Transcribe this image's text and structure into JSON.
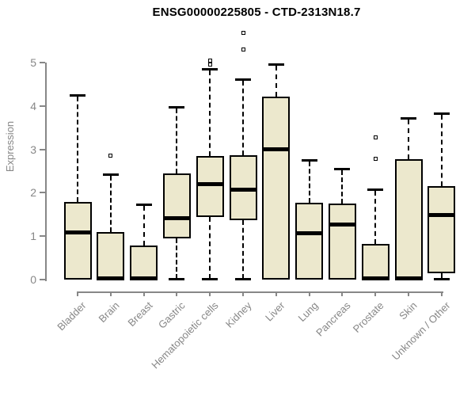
{
  "page": {
    "title": "ENSG00000225805 - CTD-2313N18.7"
  },
  "chart_data": {
    "type": "boxplot",
    "title": "ENSG00000225805 - CTD-2313N18.7",
    "xlabel": "",
    "ylabel": "Expression",
    "ylim": [
      0,
      5
    ],
    "yticks": [
      0,
      1,
      2,
      3,
      4,
      5
    ],
    "grid": false,
    "legend": "none",
    "colors": {
      "box_fill": "#ece8cd",
      "box_border": "#000000",
      "median": "#000000",
      "whisker": "#000000",
      "axis": "#878787",
      "tick_text": "#878787",
      "title_text": "#000000"
    },
    "categories": [
      "Bladder",
      "Brain",
      "Breast",
      "Gastric",
      "Hematopoietic cells",
      "Kidney",
      "Liver",
      "Lung",
      "Pancreas",
      "Prostate",
      "Skin",
      "Unknown / Other"
    ],
    "series": [
      {
        "name": "Bladder",
        "whisker_low": 0,
        "q1": 0,
        "median": 1.08,
        "q3": 1.79,
        "whisker_high": 4.25,
        "outliers": []
      },
      {
        "name": "Brain",
        "whisker_low": 0,
        "q1": 0,
        "median": 0.03,
        "q3": 1.09,
        "whisker_high": 2.43,
        "outliers": [
          2.85
        ]
      },
      {
        "name": "Breast",
        "whisker_low": 0,
        "q1": 0,
        "median": 0.03,
        "q3": 0.78,
        "whisker_high": 1.73,
        "outliers": []
      },
      {
        "name": "Gastric",
        "whisker_low": 0.02,
        "q1": 0.95,
        "median": 1.41,
        "q3": 2.44,
        "whisker_high": 3.98,
        "outliers": []
      },
      {
        "name": "Hematopoietic cells",
        "whisker_low": 0.02,
        "q1": 1.44,
        "median": 2.2,
        "q3": 2.84,
        "whisker_high": 4.85,
        "outliers": [
          4.95,
          5.04
        ]
      },
      {
        "name": "Kidney",
        "whisker_low": 0.02,
        "q1": 1.36,
        "median": 2.07,
        "q3": 2.87,
        "whisker_high": 4.62,
        "outliers": [
          5.31,
          5.68
        ]
      },
      {
        "name": "Liver",
        "whisker_low": 0,
        "q1": 0,
        "median": 3.01,
        "q3": 4.22,
        "whisker_high": 4.96,
        "outliers": []
      },
      {
        "name": "Lung",
        "whisker_low": 0,
        "q1": 0,
        "median": 1.06,
        "q3": 1.77,
        "whisker_high": 2.75,
        "outliers": []
      },
      {
        "name": "Pancreas",
        "whisker_low": 0,
        "q1": 0,
        "median": 1.27,
        "q3": 1.76,
        "whisker_high": 2.55,
        "outliers": []
      },
      {
        "name": "Prostate",
        "whisker_low": 0,
        "q1": 0,
        "median": 0.03,
        "q3": 0.82,
        "whisker_high": 2.08,
        "outliers": [
          2.79,
          3.28
        ]
      },
      {
        "name": "Skin",
        "whisker_low": 0,
        "q1": 0,
        "median": 0.03,
        "q3": 2.78,
        "whisker_high": 3.73,
        "outliers": []
      },
      {
        "name": "Unknown / Other",
        "whisker_low": 0.02,
        "q1": 0.15,
        "median": 1.48,
        "q3": 2.15,
        "whisker_high": 3.83,
        "outliers": []
      }
    ]
  }
}
